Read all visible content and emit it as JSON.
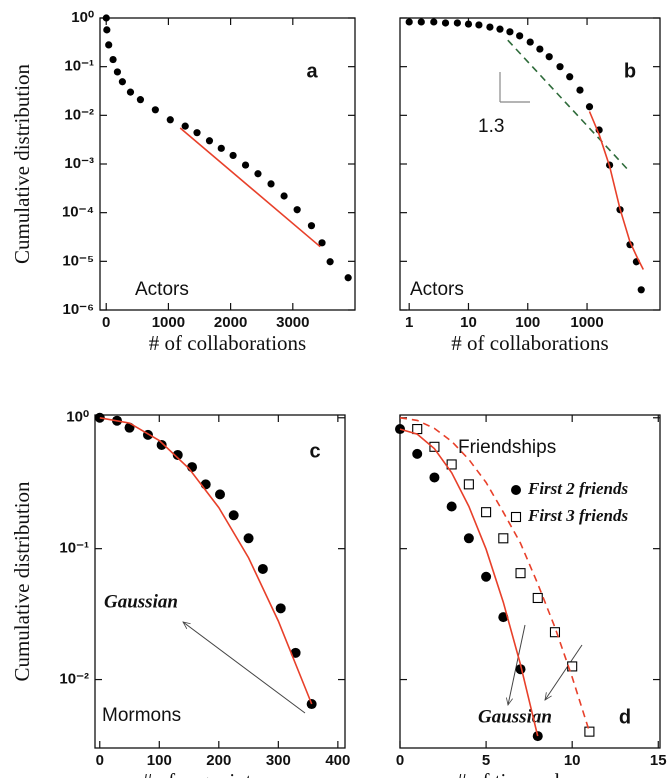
{
  "chart_data": [
    {
      "type": "scatter",
      "log_y": true,
      "xlim": [
        -100,
        4000
      ],
      "ylim": [
        1e-06,
        1
      ],
      "xticks": [
        0,
        1000,
        2000,
        3000
      ],
      "yticks": [
        {
          "value": 1,
          "label": "10⁰"
        },
        {
          "value": 0.1,
          "label": "10⁻¹"
        },
        {
          "value": 0.01,
          "label": "10⁻²"
        },
        {
          "value": 0.001,
          "label": "10⁻³"
        },
        {
          "value": 0.0001,
          "label": "10⁻⁴"
        },
        {
          "value": 1e-05,
          "label": "10⁻⁵"
        },
        {
          "value": 1e-06,
          "label": "10⁻⁶"
        }
      ],
      "xlabel": "# of collaborations",
      "ylabel": "Cumulative distribution",
      "panel_label": "a",
      "annotations": [
        {
          "text": "Actors"
        }
      ],
      "series": [
        {
          "marker": "circle",
          "color": "#000000",
          "x": [
            1,
            10,
            40,
            110,
            180,
            260,
            390,
            550,
            790,
            1030,
            1270,
            1460,
            1660,
            1850,
            2040,
            2240,
            2440,
            2650,
            2860,
            3070,
            3300,
            3470,
            3600,
            3890
          ],
          "values": [
            1,
            0.57,
            0.28,
            0.14,
            0.078,
            0.049,
            0.03,
            0.021,
            0.013,
            0.0081,
            0.006,
            0.0044,
            0.003,
            0.0021,
            0.0015,
            0.00095,
            0.00063,
            0.00039,
            0.00022,
            0.000115,
            5.4e-05,
            2.4e-05,
            9.8e-06,
            4.6e-06
          ]
        },
        {
          "style": "line",
          "color": "#e8402a",
          "x": [
            1190,
            3440
          ],
          "values": [
            0.0055,
            2e-05
          ]
        }
      ]
    },
    {
      "type": "scatter",
      "log_x": true,
      "log_y": true,
      "xlim": [
        0.7,
        17000
      ],
      "ylim": [
        1e-06,
        1
      ],
      "xticks": [
        1,
        10,
        100,
        1000
      ],
      "yticks": [
        1,
        0.1,
        0.01,
        0.001,
        0.0001,
        1e-05,
        1e-06
      ],
      "ytick_labels": false,
      "xlabel": "# of collaborations",
      "panel_label": "b",
      "annotations": [
        {
          "text": "Actors"
        },
        {
          "text": "1.3"
        }
      ],
      "series": [
        {
          "marker": "circle",
          "color": "#000000",
          "x": [
            1,
            1.6,
            2.6,
            4.1,
            6.5,
            10,
            15,
            23,
            34,
            50,
            73,
            110,
            160,
            230,
            350,
            510,
            760,
            1100,
            1600,
            2400,
            3600,
            5300,
            6800,
            8200
          ],
          "values": [
            0.83,
            0.83,
            0.83,
            0.79,
            0.79,
            0.75,
            0.72,
            0.65,
            0.59,
            0.52,
            0.43,
            0.32,
            0.23,
            0.16,
            0.1,
            0.062,
            0.033,
            0.015,
            0.005,
            0.00095,
            0.000115,
            2.2e-05,
            9.8e-06,
            2.6e-06
          ]
        },
        {
          "style": "line",
          "dash": true,
          "color": "#2e6b3a",
          "x": [
            46,
            4960
          ],
          "values": [
            0.35,
            0.00075
          ]
        },
        {
          "style": "line",
          "color": "#e8402a",
          "x": [
            1100,
            1600,
            2400,
            3600,
            5300,
            7000,
            8900
          ],
          "values": [
            0.012,
            0.004,
            0.0009,
            0.00012,
            2.5e-05,
            1.2e-05,
            6.8e-06
          ]
        }
      ]
    },
    {
      "type": "scatter",
      "log_y": true,
      "xlim": [
        -8,
        412
      ],
      "ylim": [
        0.003,
        1.05
      ],
      "xticks": [
        0,
        100,
        200,
        300,
        400
      ],
      "yticks": [
        {
          "value": 1,
          "label": "10⁰"
        },
        {
          "value": 0.1,
          "label": "10⁻¹"
        },
        {
          "value": 0.01,
          "label": "10⁻²"
        }
      ],
      "xlabel": "# of acquaintances",
      "ylabel": "Cumulative distribution",
      "panel_label": "c",
      "annotations": [
        {
          "text": "Mormons"
        },
        {
          "text": "Gaussian",
          "style": "italic"
        }
      ],
      "series": [
        {
          "marker": "circle",
          "color": "#000000",
          "x": [
            0,
            29,
            50,
            81,
            104,
            131,
            155,
            178,
            202,
            225,
            250,
            274,
            304,
            329,
            356
          ],
          "values": [
            1,
            0.95,
            0.84,
            0.74,
            0.62,
            0.52,
            0.42,
            0.31,
            0.26,
            0.18,
            0.12,
            0.07,
            0.035,
            0.016,
            0.0065
          ]
        },
        {
          "style": "line",
          "color": "#e8402a",
          "x": [
            0,
            50,
            100,
            150,
            200,
            250,
            300,
            356
          ],
          "values": [
            1,
            0.91,
            0.67,
            0.41,
            0.206,
            0.085,
            0.028,
            0.0065
          ]
        }
      ]
    },
    {
      "type": "scatter",
      "log_y": true,
      "xlim": [
        0,
        15.1
      ],
      "ylim": [
        0.003,
        1.05
      ],
      "xticks": [
        0,
        5,
        10,
        15
      ],
      "yticks": [
        1,
        0.1,
        0.01
      ],
      "ytick_labels": false,
      "xlabel": "# of times chosen",
      "panel_label": "d",
      "legend_title": "Friendships",
      "annotations": [
        {
          "text": "Gaussian",
          "style": "italic"
        }
      ],
      "series": [
        {
          "name": "First 2 friends",
          "marker": "circle",
          "color": "#000000",
          "x": [
            0,
            1,
            2,
            3,
            4,
            5,
            6,
            7,
            8
          ],
          "values": [
            0.82,
            0.53,
            0.35,
            0.21,
            0.12,
            0.061,
            0.03,
            0.012,
            0.0037
          ]
        },
        {
          "name": "First 3 friends",
          "marker": "square",
          "color": "#000000",
          "x": [
            1,
            2,
            3,
            4,
            5,
            6,
            7,
            8,
            9,
            10,
            11
          ],
          "values": [
            0.82,
            0.6,
            0.44,
            0.31,
            0.19,
            0.12,
            0.065,
            0.042,
            0.023,
            0.0126,
            0.004
          ]
        },
        {
          "style": "line",
          "color": "#e8402a",
          "x": [
            0,
            1,
            2,
            3,
            4,
            5,
            6,
            7,
            8
          ],
          "values": [
            0.82,
            0.75,
            0.58,
            0.38,
            0.21,
            0.099,
            0.039,
            0.013,
            0.0037
          ]
        },
        {
          "style": "line",
          "dash": true,
          "color": "#e8402a",
          "x": [
            0,
            1,
            2,
            3,
            4,
            5,
            6,
            7,
            8,
            9,
            10,
            11
          ],
          "values": [
            1,
            0.955,
            0.83,
            0.66,
            0.48,
            0.32,
            0.19,
            0.11,
            0.054,
            0.025,
            0.0104,
            0.004
          ]
        }
      ]
    }
  ]
}
